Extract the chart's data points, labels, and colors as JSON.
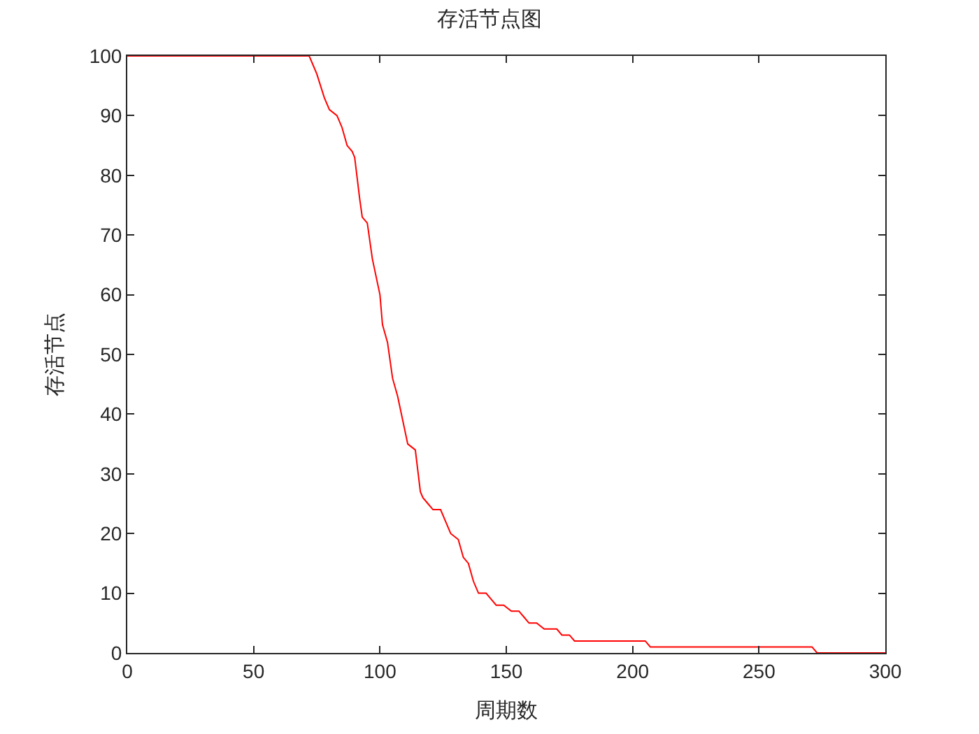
{
  "chart_data": {
    "type": "line",
    "title": "存活节点图",
    "xlabel": "周期数",
    "ylabel": "存活节点",
    "series": [
      {
        "color": "#ff0000",
        "x": [
          0,
          72,
          75,
          78,
          80,
          83,
          85,
          87,
          89,
          90,
          92,
          93,
          95,
          97,
          100,
          101,
          103,
          105,
          107,
          109,
          111,
          114,
          116,
          117,
          119,
          121,
          124,
          126,
          128,
          131,
          133,
          135,
          137,
          139,
          142,
          144,
          146,
          149,
          152,
          155,
          157,
          159,
          162,
          165,
          170,
          172,
          175,
          177,
          205,
          207,
          271,
          273,
          300
        ],
        "values": [
          100,
          100,
          97,
          93,
          91,
          90,
          88,
          85,
          84,
          83,
          76,
          73,
          72,
          66,
          60,
          55,
          52,
          46,
          43,
          39,
          35,
          34,
          27,
          26,
          25,
          24,
          24,
          22,
          20,
          19,
          16,
          15,
          12,
          10,
          10,
          9,
          8,
          8,
          7,
          7,
          6,
          5,
          5,
          4,
          4,
          3,
          3,
          2,
          2,
          1,
          1,
          0,
          0
        ]
      }
    ],
    "xlim": [
      0,
      300
    ],
    "xticks": [
      0,
      50,
      100,
      150,
      200,
      250,
      300
    ],
    "ylim": [
      0,
      100
    ],
    "yticks": [
      0,
      10,
      20,
      30,
      40,
      50,
      60,
      70,
      80,
      90,
      100
    ],
    "marker": "none",
    "line_style": "solid"
  }
}
